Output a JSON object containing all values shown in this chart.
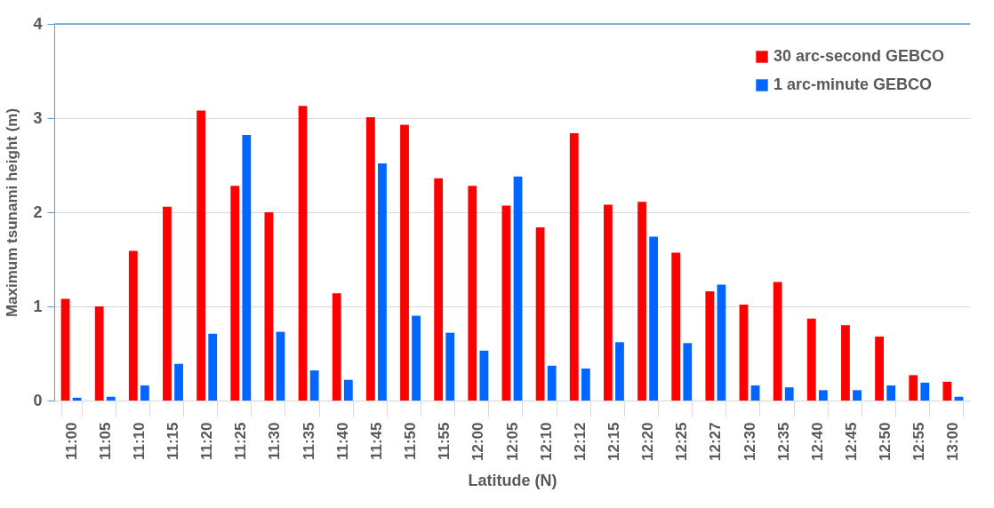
{
  "chart_data": {
    "type": "bar",
    "xlabel": "Latitude (N)",
    "ylabel": "Maximum tsunami height (m)",
    "categories": [
      "11:00",
      "11:05",
      "11:10",
      "11:15",
      "11:20",
      "11:25",
      "11:30",
      "11:35",
      "11:40",
      "11:45",
      "11:50",
      "11:55",
      "12:00",
      "12:05",
      "12:10",
      "12:12",
      "12:15",
      "12:20",
      "12:25",
      "12:27",
      "12:30",
      "12:35",
      "12:40",
      "12:45",
      "12:50",
      "12:55",
      "13:00"
    ],
    "series": [
      {
        "name": "30 arc-second GEBCO",
        "color": "#ff0000",
        "values": [
          1.08,
          1.0,
          1.59,
          2.06,
          3.08,
          2.28,
          2.0,
          3.13,
          1.14,
          3.01,
          2.93,
          2.36,
          2.28,
          2.07,
          1.84,
          2.84,
          2.08,
          2.11,
          1.57,
          1.16,
          1.02,
          1.26,
          0.87,
          0.8,
          0.68,
          0.27,
          0.2
        ]
      },
      {
        "name": "1 arc-minute GEBCO",
        "color": "#0066ff",
        "values": [
          0.03,
          0.04,
          0.16,
          0.39,
          0.71,
          2.82,
          0.73,
          0.32,
          0.22,
          2.52,
          0.9,
          0.72,
          0.53,
          2.38,
          0.37,
          0.34,
          0.62,
          1.74,
          0.61,
          1.23,
          0.16,
          0.14,
          0.11,
          0.11,
          0.16,
          0.19,
          0.04
        ]
      }
    ],
    "ylim": [
      0,
      4
    ],
    "yticks": [
      0,
      1,
      2,
      3,
      4
    ],
    "grid": "y",
    "legend": "top right"
  }
}
